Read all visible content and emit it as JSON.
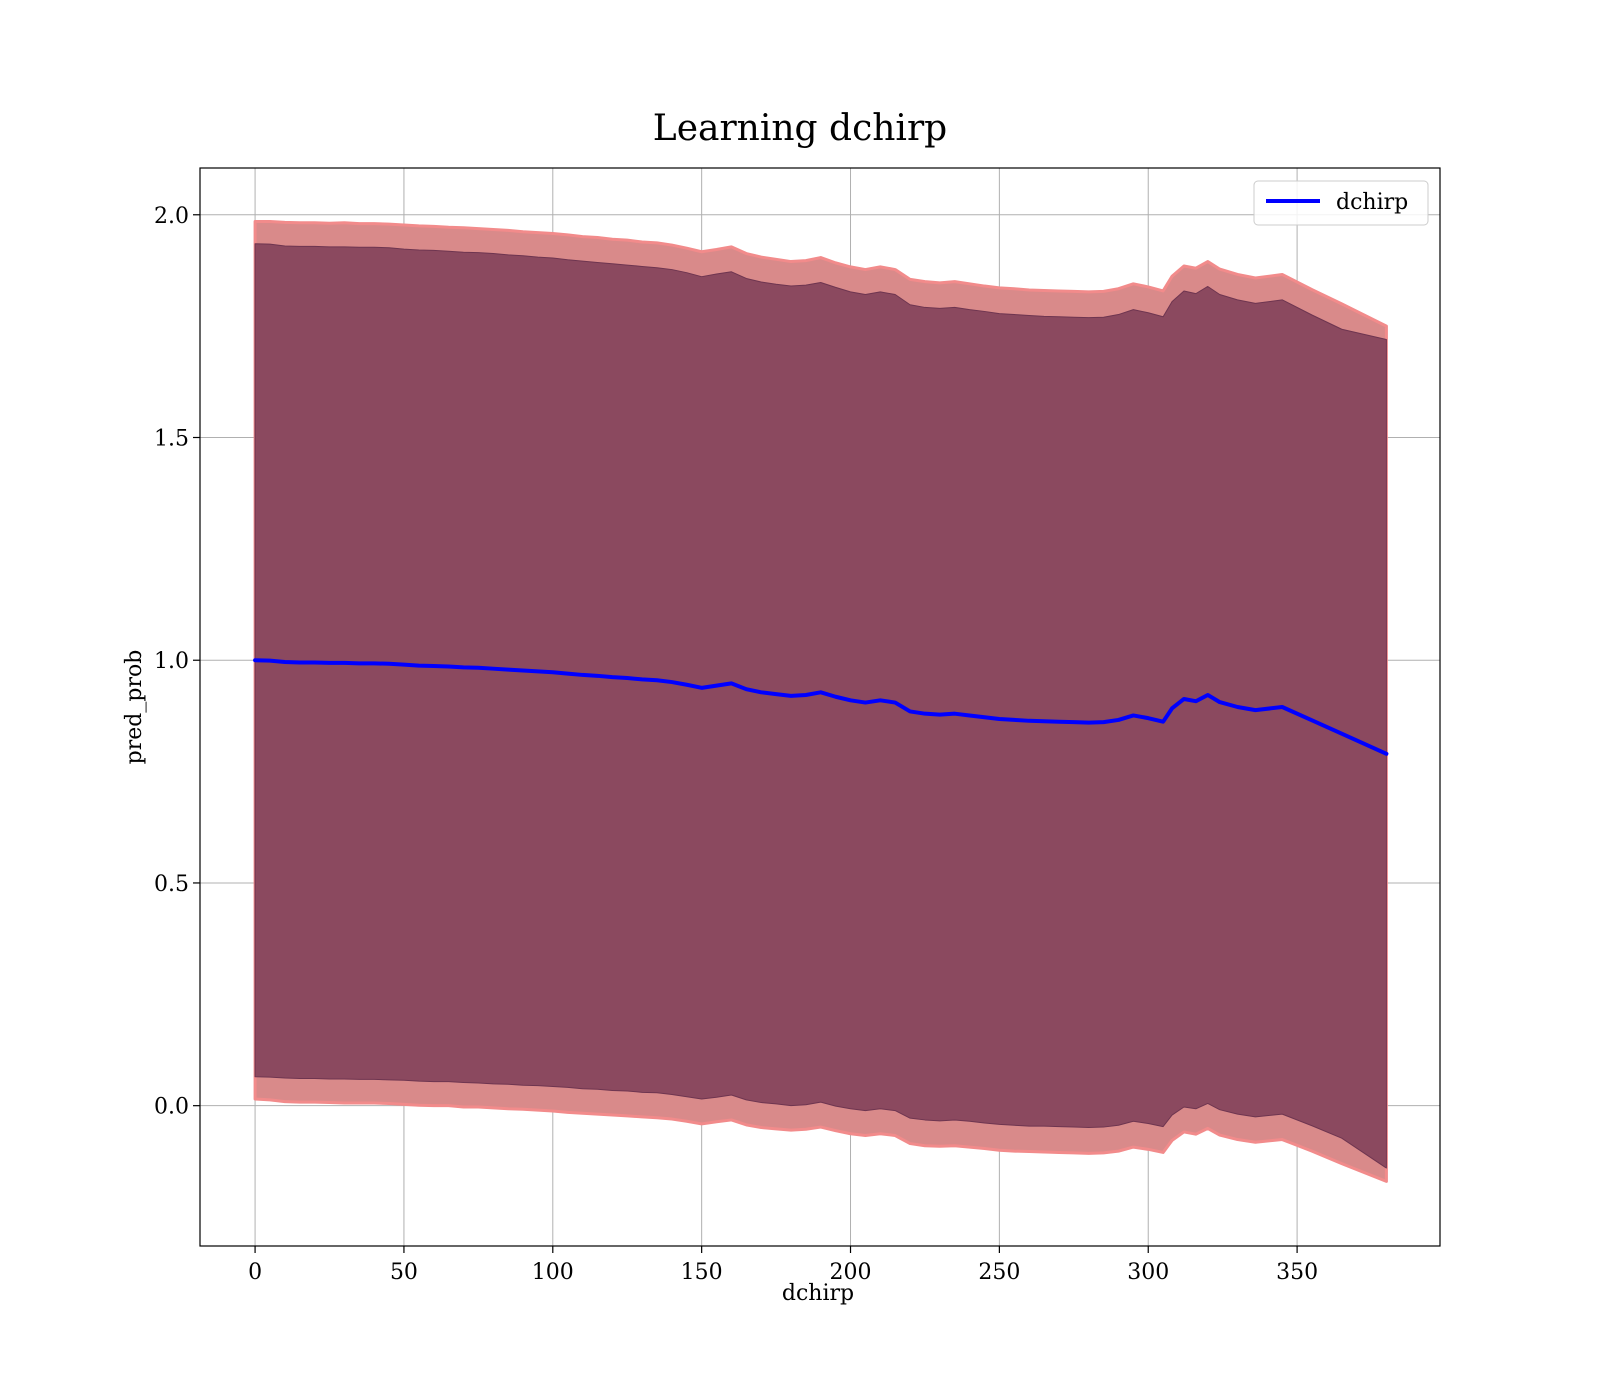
{
  "chart_data": {
    "type": "line",
    "title": "Learning dchirp",
    "xlabel": "dchirp",
    "ylabel": "pred_prob",
    "xlim": [
      -18.5,
      398
    ],
    "ylim": [
      -0.315,
      2.105
    ],
    "xticks": [
      0,
      50,
      100,
      150,
      200,
      250,
      300,
      350
    ],
    "yticks": [
      0.0,
      0.5,
      1.0,
      1.5,
      2.0
    ],
    "xtick_labels": [
      "0",
      "50",
      "100",
      "150",
      "200",
      "250",
      "300",
      "350"
    ],
    "ytick_labels": [
      "0.0",
      "0.5",
      "1.0",
      "1.5",
      "2.0"
    ],
    "grid": true,
    "legend_position": "upper right",
    "series": [
      {
        "name": "dchirp",
        "color": "#0000ff",
        "x": [
          0,
          5,
          10,
          15,
          20,
          25,
          30,
          35,
          40,
          45,
          50,
          55,
          60,
          65,
          70,
          75,
          80,
          85,
          90,
          95,
          100,
          105,
          110,
          115,
          120,
          125,
          130,
          135,
          140,
          145,
          150,
          155,
          160,
          165,
          170,
          175,
          180,
          185,
          190,
          195,
          200,
          205,
          210,
          215,
          220,
          225,
          230,
          235,
          240,
          245,
          250,
          255,
          260,
          265,
          270,
          275,
          280,
          285,
          290,
          295,
          300,
          305,
          308,
          312,
          316,
          320,
          324,
          330,
          336,
          345,
          355,
          365,
          380
        ],
        "y": [
          1.0,
          0.999,
          0.996,
          0.995,
          0.995,
          0.994,
          0.994,
          0.993,
          0.993,
          0.992,
          0.99,
          0.988,
          0.987,
          0.986,
          0.984,
          0.983,
          0.981,
          0.979,
          0.977,
          0.975,
          0.973,
          0.97,
          0.967,
          0.965,
          0.962,
          0.96,
          0.957,
          0.955,
          0.951,
          0.945,
          0.938,
          0.943,
          0.948,
          0.935,
          0.928,
          0.924,
          0.92,
          0.922,
          0.928,
          0.918,
          0.91,
          0.905,
          0.91,
          0.905,
          0.885,
          0.88,
          0.878,
          0.88,
          0.876,
          0.872,
          0.868,
          0.866,
          0.864,
          0.863,
          0.862,
          0.861,
          0.86,
          0.861,
          0.866,
          0.876,
          0.87,
          0.862,
          0.892,
          0.913,
          0.908,
          0.922,
          0.906,
          0.895,
          0.888,
          0.895,
          0.865,
          0.835,
          0.79
        ]
      }
    ],
    "bands": [
      {
        "label": "outer band",
        "color": "#d98a8a",
        "upper": [
          1.985,
          1.985,
          1.983,
          1.982,
          1.982,
          1.981,
          1.982,
          1.98,
          1.98,
          1.979,
          1.977,
          1.975,
          1.974,
          1.972,
          1.971,
          1.969,
          1.967,
          1.965,
          1.962,
          1.96,
          1.958,
          1.955,
          1.951,
          1.949,
          1.945,
          1.943,
          1.939,
          1.937,
          1.932,
          1.925,
          1.917,
          1.922,
          1.928,
          1.913,
          1.905,
          1.9,
          1.895,
          1.897,
          1.904,
          1.892,
          1.883,
          1.877,
          1.883,
          1.877,
          1.855,
          1.85,
          1.847,
          1.85,
          1.845,
          1.84,
          1.836,
          1.834,
          1.831,
          1.83,
          1.829,
          1.828,
          1.827,
          1.828,
          1.834,
          1.845,
          1.838,
          1.829,
          1.862,
          1.885,
          1.88,
          1.895,
          1.878,
          1.866,
          1.858,
          1.866,
          1.832,
          1.8,
          1.75
        ],
        "lower": [
          0.015,
          0.013,
          0.009,
          0.008,
          0.008,
          0.007,
          0.006,
          0.006,
          0.006,
          0.005,
          0.003,
          0.001,
          0.0,
          -0.0,
          -0.003,
          -0.003,
          -0.005,
          -0.007,
          -0.008,
          -0.01,
          -0.012,
          -0.015,
          -0.017,
          -0.019,
          -0.021,
          -0.023,
          -0.025,
          -0.027,
          -0.03,
          -0.035,
          -0.041,
          -0.036,
          -0.032,
          -0.043,
          -0.049,
          -0.052,
          -0.055,
          -0.053,
          -0.048,
          -0.056,
          -0.063,
          -0.067,
          -0.063,
          -0.067,
          -0.085,
          -0.09,
          -0.091,
          -0.09,
          -0.093,
          -0.096,
          -0.1,
          -0.102,
          -0.103,
          -0.104,
          -0.105,
          -0.106,
          -0.107,
          -0.106,
          -0.102,
          -0.093,
          -0.098,
          -0.105,
          -0.078,
          -0.059,
          -0.064,
          -0.051,
          -0.066,
          -0.076,
          -0.082,
          -0.076,
          -0.102,
          -0.13,
          -0.17
        ]
      },
      {
        "label": "inner band",
        "color": "#7a3a55",
        "upper": [
          1.935,
          1.934,
          1.93,
          1.929,
          1.929,
          1.928,
          1.928,
          1.927,
          1.927,
          1.926,
          1.923,
          1.921,
          1.92,
          1.918,
          1.916,
          1.915,
          1.913,
          1.91,
          1.908,
          1.905,
          1.903,
          1.899,
          1.896,
          1.893,
          1.89,
          1.887,
          1.884,
          1.881,
          1.877,
          1.87,
          1.861,
          1.867,
          1.872,
          1.857,
          1.849,
          1.844,
          1.84,
          1.842,
          1.848,
          1.837,
          1.827,
          1.821,
          1.827,
          1.821,
          1.798,
          1.792,
          1.79,
          1.792,
          1.787,
          1.783,
          1.778,
          1.776,
          1.774,
          1.772,
          1.771,
          1.77,
          1.769,
          1.77,
          1.776,
          1.787,
          1.78,
          1.771,
          1.805,
          1.829,
          1.823,
          1.839,
          1.821,
          1.809,
          1.801,
          1.809,
          1.775,
          1.743,
          1.72
        ],
        "lower": [
          0.065,
          0.064,
          0.062,
          0.061,
          0.061,
          0.06,
          0.06,
          0.059,
          0.059,
          0.058,
          0.057,
          0.055,
          0.054,
          0.054,
          0.052,
          0.051,
          0.049,
          0.048,
          0.046,
          0.045,
          0.043,
          0.041,
          0.038,
          0.037,
          0.034,
          0.033,
          0.03,
          0.029,
          0.025,
          0.02,
          0.015,
          0.019,
          0.024,
          0.013,
          0.007,
          0.004,
          0.0,
          0.002,
          0.008,
          -0.001,
          -0.007,
          -0.011,
          -0.007,
          -0.011,
          -0.028,
          -0.032,
          -0.034,
          -0.032,
          -0.035,
          -0.039,
          -0.042,
          -0.044,
          -0.046,
          -0.046,
          -0.047,
          -0.048,
          -0.049,
          -0.048,
          -0.044,
          -0.035,
          -0.04,
          -0.047,
          -0.021,
          -0.003,
          -0.007,
          0.005,
          -0.009,
          -0.019,
          -0.025,
          -0.019,
          -0.045,
          -0.073,
          -0.14
        ]
      }
    ]
  }
}
